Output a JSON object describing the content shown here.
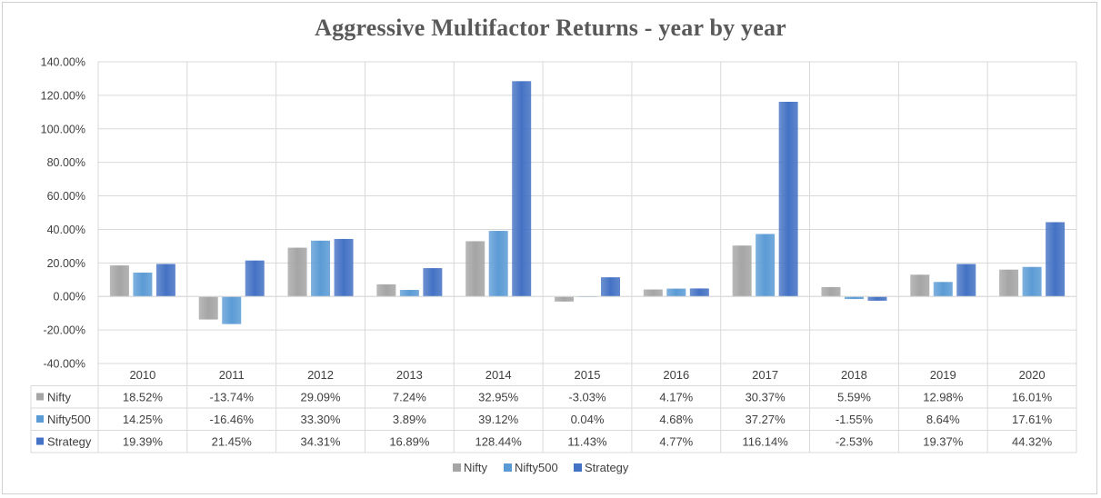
{
  "chart_data": {
    "type": "bar",
    "title": "Aggressive Multifactor Returns - year by year",
    "categories": [
      "2010",
      "2011",
      "2012",
      "2013",
      "2014",
      "2015",
      "2016",
      "2017",
      "2018",
      "2019",
      "2020"
    ],
    "series": [
      {
        "name": "Nifty",
        "color": "#a5a5a5",
        "values": [
          18.52,
          -13.74,
          29.09,
          7.24,
          32.95,
          -3.03,
          4.17,
          30.37,
          5.59,
          12.98,
          16.01
        ],
        "labels": [
          "18.52%",
          "-13.74%",
          "29.09%",
          "7.24%",
          "32.95%",
          "-3.03%",
          "4.17%",
          "30.37%",
          "5.59%",
          "12.98%",
          "16.01%"
        ]
      },
      {
        "name": "Nifty500",
        "color": "#5b9bd5",
        "values": [
          14.25,
          -16.46,
          33.3,
          3.89,
          39.12,
          0.04,
          4.68,
          37.27,
          -1.55,
          8.64,
          17.61
        ],
        "labels": [
          "14.25%",
          "-16.46%",
          "33.30%",
          "3.89%",
          "39.12%",
          "0.04%",
          "4.68%",
          "37.27%",
          "-1.55%",
          "8.64%",
          "17.61%"
        ]
      },
      {
        "name": "Strategy",
        "color": "#4472c4",
        "values": [
          19.39,
          21.45,
          34.31,
          16.89,
          128.44,
          11.43,
          4.77,
          116.14,
          -2.53,
          19.37,
          44.32
        ],
        "labels": [
          "19.39%",
          "21.45%",
          "34.31%",
          "16.89%",
          "128.44%",
          "11.43%",
          "4.77%",
          "116.14%",
          "-2.53%",
          "19.37%",
          "44.32%"
        ]
      }
    ],
    "ylim": [
      -40,
      140
    ],
    "yticks": [
      140,
      120,
      100,
      80,
      60,
      40,
      20,
      0,
      -20,
      -40
    ],
    "ytick_labels": [
      "140.00%",
      "120.00%",
      "100.00%",
      "80.00%",
      "60.00%",
      "40.00%",
      "20.00%",
      "0.00%",
      "-20.00%",
      "-40.00%"
    ],
    "grid": true,
    "data_table": true,
    "legend_position": "bottom"
  }
}
